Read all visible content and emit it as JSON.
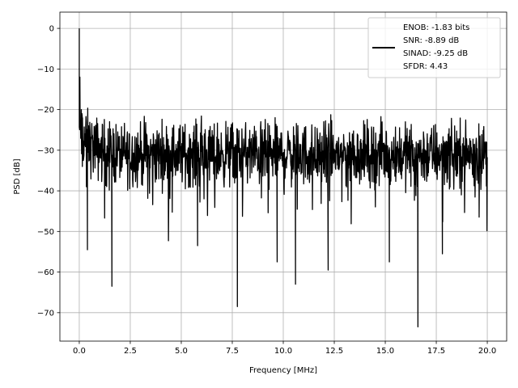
{
  "chart_data": {
    "type": "line",
    "xlabel": "Frequency [MHz]",
    "ylabel": "PSD [dB]",
    "xlim": [
      -0.95,
      20.95
    ],
    "ylim": [
      -77,
      4
    ],
    "x_ticks": [
      0.0,
      2.5,
      5.0,
      7.5,
      10.0,
      12.5,
      15.0,
      17.5,
      20.0
    ],
    "x_tick_labels": [
      "0.0",
      "2.5",
      "5.0",
      "7.5",
      "10.0",
      "12.5",
      "15.0",
      "17.5",
      "20.0"
    ],
    "y_ticks": [
      0,
      -10,
      -20,
      -30,
      -40,
      -50,
      -60,
      -70
    ],
    "y_tick_labels": [
      "0",
      "−10",
      "−20",
      "−30",
      "−40",
      "−50",
      "−60",
      "−70"
    ],
    "grid": true,
    "legend_position": "top-right",
    "legend_lines": [
      "ENOB: -1.83 bits",
      "SNR: -8.89 dB",
      "SINAD: -9.25 dB",
      "SFDR: 4.43"
    ],
    "series": [
      {
        "color": "#000000",
        "x_range": [
          0,
          20
        ],
        "noise_floor_center": -31,
        "noise_spread": 7,
        "spikes": [
          {
            "x": 0.0,
            "y": 0
          },
          {
            "x": 0.03,
            "y": -12
          },
          {
            "x": 0.1,
            "y": -20
          },
          {
            "x": 0.15,
            "y": -34
          },
          {
            "x": 0.35,
            "y": -39
          },
          {
            "x": 0.4,
            "y": -54.5
          },
          {
            "x": 1.6,
            "y": -63.5
          },
          {
            "x": 5.8,
            "y": -53.5
          },
          {
            "x": 7.75,
            "y": -68.5
          },
          {
            "x": 9.7,
            "y": -57.5
          },
          {
            "x": 10.6,
            "y": -63
          },
          {
            "x": 12.2,
            "y": -59.5
          },
          {
            "x": 15.2,
            "y": -57.5
          },
          {
            "x": 16.6,
            "y": -73.5
          },
          {
            "x": 17.8,
            "y": -55.5
          }
        ]
      }
    ]
  }
}
